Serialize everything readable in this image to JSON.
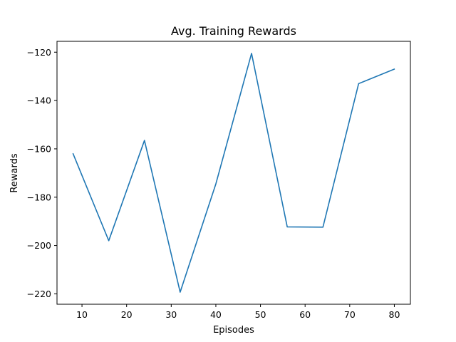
{
  "chart_data": {
    "type": "line",
    "title": "Avg. Training Rewards",
    "xlabel": "Episodes",
    "ylabel": "Rewards",
    "x": [
      8,
      16,
      24,
      32,
      40,
      48,
      56,
      64,
      72,
      80
    ],
    "series": [
      {
        "values": [
          -162,
          -198,
          -156.5,
          -219.3,
          -174.5,
          -120.5,
          -192.3,
          -192.4,
          -133,
          -127
        ],
        "color": "#1f77b4"
      }
    ],
    "xlim": [
      4.4,
      83.6
    ],
    "ylim": [
      -224.3,
      -115.5
    ],
    "xticks": [
      10,
      20,
      30,
      40,
      50,
      60,
      70,
      80
    ],
    "yticks": [
      -220,
      -200,
      -180,
      -160,
      -140,
      -120
    ],
    "grid": false,
    "legend": "none"
  }
}
